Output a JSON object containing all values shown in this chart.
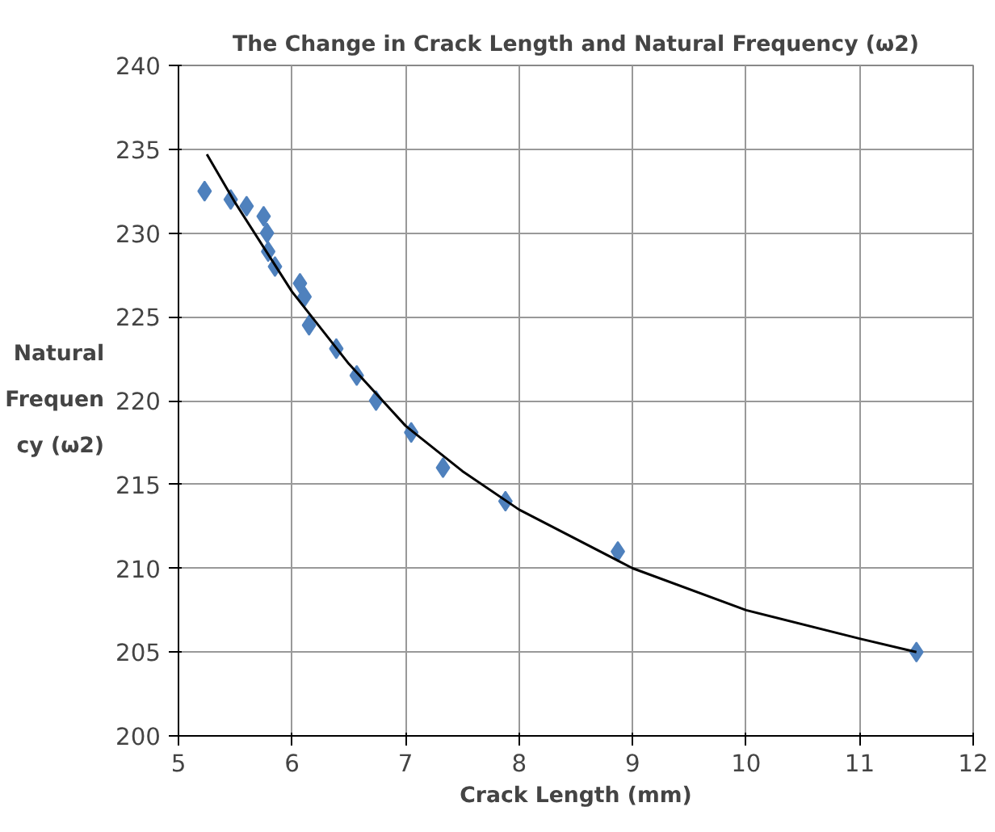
{
  "chart_data": {
    "type": "scatter",
    "title": "The Change in Crack Length and Natural Frequency (ω2)",
    "xlabel": "Crack Length (mm)",
    "ylabel": "Natural Frequency (ω2)",
    "xlim": [
      5,
      12
    ],
    "xticks": [
      5,
      6,
      7,
      8,
      9,
      10,
      11,
      12
    ],
    "ylim": [
      200,
      240
    ],
    "yticks": [
      200,
      205,
      210,
      215,
      220,
      225,
      230,
      235,
      240
    ],
    "grid": true,
    "series": [
      {
        "marker": "diamond",
        "color": "#4f81bd",
        "x": [
          5.23,
          5.46,
          5.6,
          5.75,
          5.78,
          5.79,
          5.85,
          6.07,
          6.11,
          6.15,
          6.39,
          6.57,
          6.74,
          7.05,
          7.33,
          7.88,
          8.87,
          11.5
        ],
        "values": [
          232.5,
          232,
          231.6,
          231,
          230,
          228.9,
          228,
          227,
          226.2,
          224.5,
          223.1,
          221.5,
          220,
          218.1,
          216,
          214,
          211,
          205
        ]
      },
      {
        "type": "line",
        "color": "#000000",
        "x": [
          5.25,
          5.5,
          6,
          6.5,
          7,
          7.5,
          8,
          9,
          10,
          11,
          11.5
        ],
        "values": [
          234.7,
          231.8,
          226.5,
          222.2,
          218.5,
          215.8,
          213.5,
          210,
          207.5,
          205.8,
          205
        ]
      }
    ]
  }
}
